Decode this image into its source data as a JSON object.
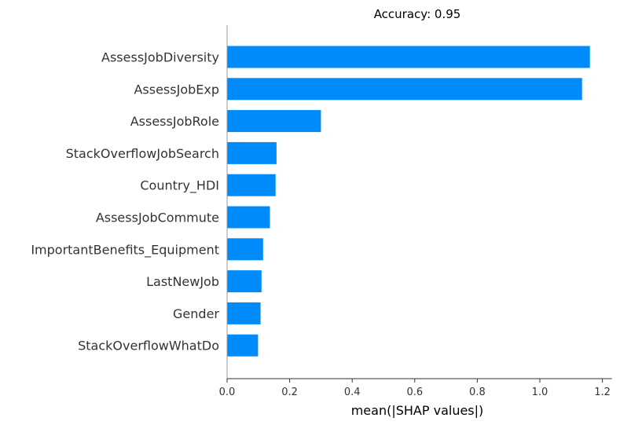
{
  "chart_data": {
    "type": "bar",
    "orientation": "horizontal",
    "title": "Accuracy: 0.95",
    "xlabel": "mean(|SHAP values|)",
    "ylabel": "",
    "categories": [
      "AssessJobDiversity",
      "AssessJobExp",
      "AssessJobRole",
      "StackOverflowJobSearch",
      "Country_HDI",
      "AssessJobCommute",
      "ImportantBenefits_Equipment",
      "LastNewJob",
      "Gender",
      "StackOverflowWhatDo"
    ],
    "values": [
      1.16,
      1.135,
      0.3,
      0.158,
      0.155,
      0.137,
      0.115,
      0.11,
      0.107,
      0.099
    ],
    "xlim": [
      0,
      1.22
    ],
    "xticks": [
      "0.0",
      "0.2",
      "0.4",
      "0.6",
      "0.8",
      "1.0",
      "1.2"
    ],
    "xtick_values": [
      0.0,
      0.2,
      0.4,
      0.6,
      0.8,
      1.0,
      1.2
    ],
    "bar_color": "#008bfb",
    "grid": false,
    "legend": "none"
  }
}
